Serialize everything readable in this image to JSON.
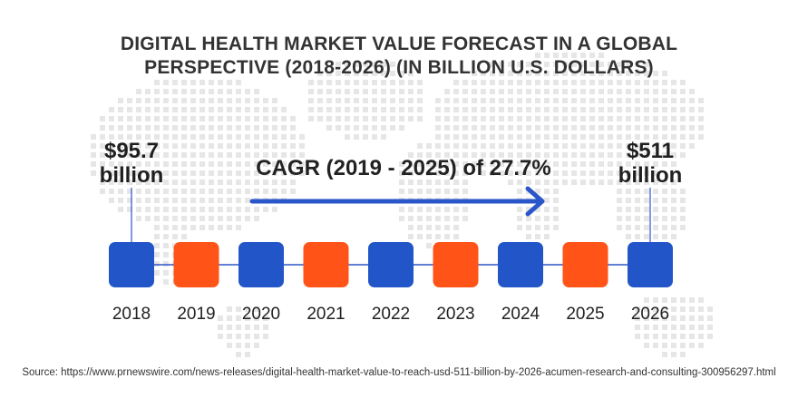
{
  "title_line1": "DIGITAL HEALTH MARKET VALUE FORECAST IN A GLOBAL",
  "title_line2": "PERSPECTIVE (2018-2026) (IN BILLION U.S. DOLLARS)",
  "start_value": {
    "amount": "$95.7",
    "unit": "billion"
  },
  "end_value": {
    "amount": "$511",
    "unit": "billion"
  },
  "cagr_text": "CAGR (2019 - 2025) of 27.7%",
  "source": "Source: https://www.prnewswire.com/news-releases/digital-health-market-value-to-reach-usd-511-billion-by-2026-acumen-research-and-consulting-300956297.html",
  "colors": {
    "blue": "#2255C8",
    "orange": "#FF5318",
    "arrow": "#2A56C9",
    "line": "#2A56C9",
    "map_dots": "#E6E6E6"
  },
  "chart_data": {
    "type": "timeline",
    "title": "DIGITAL HEALTH MARKET VALUE FORECAST IN A GLOBAL PERSPECTIVE (2018-2026) (IN BILLION U.S. DOLLARS)",
    "years": [
      "2018",
      "2019",
      "2020",
      "2021",
      "2022",
      "2023",
      "2024",
      "2025",
      "2026"
    ],
    "marker_colors": [
      "blue",
      "orange",
      "blue",
      "orange",
      "blue",
      "orange",
      "blue",
      "orange",
      "blue"
    ],
    "values": [
      {
        "year": "2018",
        "value": 95.7,
        "label": "$95.7 billion"
      },
      {
        "year": "2026",
        "value": 511,
        "label": "$511 billion"
      }
    ],
    "cagr": {
      "start": "2019",
      "end": "2025",
      "rate_percent": 27.7
    }
  }
}
